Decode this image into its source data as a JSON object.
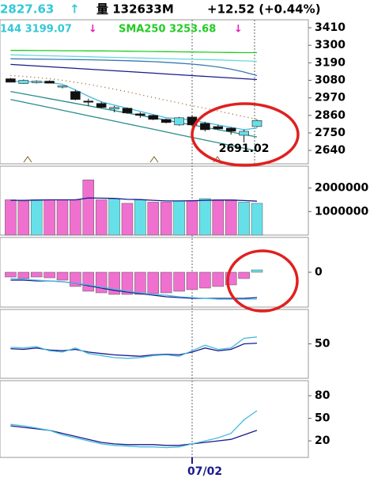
{
  "header": {
    "price": "2827.63",
    "price_arrow": "↑",
    "volume": "量 132633M",
    "change": "+12.52 (+0.44%)",
    "ma144": "144 3199.07",
    "ma144_arrow": "↓",
    "sma250": "SMA250 3253.68",
    "sma250_arrow": "↓"
  },
  "chart_data": [
    {
      "type": "candlestick",
      "categories": [
        null,
        null,
        null,
        null,
        null,
        null,
        null,
        null,
        null,
        null,
        null,
        null,
        null,
        null,
        "07/02",
        null,
        null,
        null,
        null,
        null
      ],
      "open": [
        3090,
        3060,
        3065,
        3075,
        3040,
        3010,
        2950,
        2935,
        2900,
        2905,
        2870,
        2860,
        2835,
        2800,
        2850,
        2810,
        2790,
        2780,
        2735,
        2790
      ],
      "high": [
        3095,
        3085,
        3080,
        3080,
        3048,
        3020,
        2965,
        2945,
        2920,
        2910,
        2880,
        2865,
        2840,
        2850,
        2860,
        2820,
        2800,
        2785,
        2770,
        2835
      ],
      "low": [
        3070,
        3058,
        3060,
        3060,
        3030,
        2955,
        2920,
        2905,
        2880,
        2870,
        2845,
        2830,
        2810,
        2795,
        2790,
        2760,
        2770,
        2740,
        2691.02,
        2785
      ],
      "close": [
        3068,
        3080,
        3075,
        3062,
        3045,
        2960,
        2945,
        2910,
        2910,
        2875,
        2860,
        2835,
        2815,
        2845,
        2800,
        2770,
        2775,
        2760,
        2760,
        2827.63
      ],
      "up_color": "#66e0e8",
      "down_color": "#111111",
      "annotation": "2691.02",
      "annotation_index": 18,
      "series": [
        {
          "color": "#22cc22",
          "values": [
            3268,
            3268,
            3267,
            3267,
            3266,
            3266,
            3265,
            3265,
            3264,
            3263,
            3262,
            3261,
            3260,
            3259,
            3258,
            3257,
            3256,
            3255,
            3254,
            3253.68
          ]
        },
        {
          "color": "#66d8e0",
          "values": [
            3240,
            3238,
            3236,
            3234,
            3232,
            3230,
            3228,
            3226,
            3224,
            3222,
            3220,
            3218,
            3216,
            3214,
            3212,
            3210,
            3208,
            3205,
            3202,
            3199.07
          ]
        },
        {
          "color": "#3b78b0",
          "values": [
            3215,
            3214,
            3213,
            3212,
            3211,
            3210,
            3209,
            3207,
            3205,
            3203,
            3200,
            3197,
            3193,
            3188,
            3182,
            3174,
            3164,
            3150,
            3132,
            3110
          ]
        },
        {
          "color": "#1a1a8c",
          "values": [
            3180,
            3175,
            3170,
            3165,
            3160,
            3155,
            3150,
            3145,
            3140,
            3135,
            3130,
            3125,
            3120,
            3115,
            3110,
            3105,
            3100,
            3095,
            3090,
            3085
          ]
        },
        {
          "color": "#8b5a2b",
          "dotted": true,
          "values": [
            3110,
            3105,
            3098,
            3090,
            3080,
            3068,
            3055,
            3040,
            3025,
            3008,
            2990,
            2972,
            2955,
            2938,
            2920,
            2905,
            2888,
            2870,
            2852,
            2835
          ]
        },
        {
          "color": "#2a8c8c",
          "values": [
            3010,
            2995,
            2980,
            2965,
            2950,
            2935,
            2920,
            2905,
            2890,
            2875,
            2860,
            2845,
            2830,
            2815,
            2800,
            2785,
            2770,
            2755,
            2740,
            2725
          ]
        },
        {
          "color": "#2a8c8c",
          "values": [
            2960,
            2943,
            2926,
            2909,
            2892,
            2875,
            2858,
            2841,
            2824,
            2807,
            2790,
            2773,
            2756,
            2739,
            2722,
            2705,
            2688,
            2671,
            2654,
            2637
          ]
        },
        {
          "color": "#44bbdd",
          "values": [
            3075,
            3072,
            3070,
            3066,
            3055,
            3020,
            2980,
            2945,
            2925,
            2905,
            2885,
            2865,
            2845,
            2840,
            2830,
            2815,
            2800,
            2785,
            2770,
            2780
          ]
        }
      ],
      "ylim": [
        2556,
        3460
      ],
      "yticks": [
        3410,
        3300,
        3190,
        3080,
        2970,
        2860,
        2750,
        2640
      ]
    },
    {
      "type": "bar",
      "values": [
        1500000,
        1450000,
        1500000,
        1500000,
        1500000,
        1500000,
        2350000,
        1500000,
        1550000,
        1350000,
        1500000,
        1400000,
        1400000,
        1450000,
        1450000,
        1550000,
        1500000,
        1500000,
        1400000,
        1350000
      ],
      "colors": [
        "#f070d0",
        "#f070d0",
        "#66e0e8",
        "#f070d0",
        "#f070d0",
        "#f070d0",
        "#f070d0",
        "#f070d0",
        "#66e0e8",
        "#f070d0",
        "#66e0e8",
        "#f070d0",
        "#f070d0",
        "#66e0e8",
        "#f070d0",
        "#66e0e8",
        "#f070d0",
        "#f070d0",
        "#66e0e8",
        "#66e0e8"
      ],
      "series": [
        {
          "color": "#1a1a8c",
          "values": [
            1480000,
            1480000,
            1490000,
            1500000,
            1500000,
            1500000,
            1580000,
            1570000,
            1560000,
            1520000,
            1510000,
            1480000,
            1450000,
            1450000,
            1460000,
            1480000,
            1490000,
            1490000,
            1470000,
            1440000
          ]
        }
      ],
      "ylim": [
        0,
        2930000
      ],
      "yticks": [
        2000000,
        1000000
      ]
    },
    {
      "type": "bar",
      "values": [
        -6,
        -8,
        -6,
        -7,
        -10,
        -18,
        -24,
        -26,
        -28,
        -28,
        -28,
        -27,
        -26,
        -24,
        -22,
        -20,
        -18,
        -16,
        -8,
        3
      ],
      "colors": [
        "#f070d0",
        "#f070d0",
        "#f070d0",
        "#f070d0",
        "#f070d0",
        "#f070d0",
        "#f070d0",
        "#f070d0",
        "#f070d0",
        "#f070d0",
        "#f070d0",
        "#f070d0",
        "#f070d0",
        "#f070d0",
        "#f070d0",
        "#f070d0",
        "#f070d0",
        "#f070d0",
        "#f070d0",
        "#66e0e8"
      ],
      "series": [
        {
          "color": "#1a1a8c",
          "values": [
            -10,
            -10,
            -11,
            -11,
            -12,
            -14,
            -17,
            -20,
            -23,
            -25,
            -27,
            -29,
            -31,
            -32,
            -33,
            -33,
            -33,
            -33,
            -33,
            -32
          ]
        },
        {
          "color": "#44bbdd",
          "values": [
            -8,
            -9,
            -10,
            -11,
            -12,
            -14,
            -16,
            -19,
            -21,
            -24,
            -26,
            -28,
            -29,
            -31,
            -32,
            -33,
            -34,
            -34,
            -34,
            -34
          ]
        }
      ],
      "ylim": [
        -44,
        44
      ],
      "yticks": [
        0
      ]
    },
    {
      "type": "line",
      "series": [
        {
          "color": "#1a1a8c",
          "values": [
            43,
            42,
            44,
            41,
            40,
            42,
            38,
            36,
            34,
            33,
            32,
            34,
            35,
            34,
            38,
            44,
            40,
            42,
            50,
            51
          ]
        },
        {
          "color": "#44bbdd",
          "values": [
            45,
            44,
            46,
            40,
            38,
            44,
            36,
            33,
            30,
            29,
            30,
            33,
            34,
            32,
            40,
            48,
            42,
            44,
            58,
            60
          ]
        }
      ],
      "ylim": [
        0,
        100
      ],
      "yticks": [
        50
      ]
    },
    {
      "type": "line",
      "series": [
        {
          "color": "#1a1a8c",
          "values": [
            40,
            38,
            36,
            34,
            30,
            26,
            22,
            18,
            16,
            15,
            15,
            15,
            14,
            14,
            16,
            18,
            20,
            22,
            28,
            34
          ]
        },
        {
          "color": "#44bbdd",
          "values": [
            42,
            40,
            37,
            34,
            28,
            24,
            20,
            16,
            14,
            13,
            12,
            12,
            11,
            12,
            16,
            20,
            24,
            30,
            48,
            60
          ]
        }
      ],
      "ylim": [
        -2,
        100
      ],
      "yticks": [
        80,
        50,
        20
      ]
    }
  ]
}
